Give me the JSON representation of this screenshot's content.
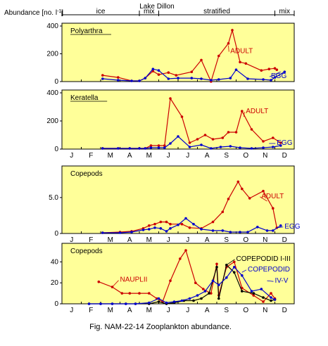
{
  "figure": {
    "title": "Lake Dillon",
    "ylabel": "Abundance [no. l",
    "ylabel_sup": "-1",
    "ylabel_close": "]",
    "caption": "Fig. NAM-22-14  Zooplankton abundance."
  },
  "seasons": [
    {
      "label": "ice",
      "from": 0,
      "to": 4
    },
    {
      "label": "mix",
      "from": 4,
      "to": 5
    },
    {
      "label": "stratified",
      "from": 5,
      "to": 11
    },
    {
      "label": "mix",
      "from": 11,
      "to": 12
    }
  ],
  "months": [
    "J",
    "F",
    "M",
    "A",
    "M",
    "J",
    "J",
    "A",
    "S",
    "O",
    "N",
    "D"
  ],
  "colors": {
    "panel_bg": "#ffff99",
    "adult": "#cc0000",
    "egg": "#0000cc",
    "nauplii": "#cc0000",
    "copepodid_1_3": "#000000",
    "copepodid_4_5": "#0000cc"
  },
  "chart_data": [
    {
      "type": "line",
      "title": "Polyarthra",
      "ylim": [
        0,
        400
      ],
      "yticks": [
        "0",
        "200",
        "400"
      ],
      "series": [
        {
          "name": "ADULT",
          "color": "#cc0000",
          "x": [
            2.1,
            2.9,
            3.6,
            4.0,
            4.3,
            4.7,
            5.0,
            5.5,
            5.9,
            6.7,
            7.2,
            7.7,
            8.1,
            8.6,
            8.8,
            9.2,
            9.5,
            10.3,
            10.7,
            11.0,
            11.1
          ],
          "y": [
            45,
            30,
            5,
            5,
            25,
            75,
            50,
            65,
            45,
            70,
            155,
            0,
            185,
            275,
            370,
            140,
            130,
            80,
            90,
            95,
            85
          ]
        },
        {
          "name": "EGG",
          "color": "#0000cc",
          "x": [
            2.1,
            2.9,
            3.6,
            4.0,
            4.3,
            4.7,
            5.0,
            5.5,
            6.0,
            6.7,
            7.2,
            7.7,
            8.1,
            8.7,
            9.0,
            9.6,
            10.4,
            10.8,
            11.0,
            11.5
          ],
          "y": [
            20,
            10,
            5,
            5,
            25,
            90,
            80,
            20,
            25,
            25,
            20,
            10,
            15,
            25,
            85,
            20,
            15,
            10,
            30,
            70
          ]
        }
      ],
      "labels": [
        {
          "bind": "adult",
          "text": "ADULT",
          "color": "#cc0000",
          "x": 8.6,
          "y": 260,
          "tx": 8.7,
          "ty": 220
        },
        {
          "bind": "egg",
          "text": "EGG",
          "color": "#0000cc",
          "x": 11.3,
          "y": 70,
          "tx": 10.8,
          "ty": 40
        }
      ]
    },
    {
      "type": "line",
      "title": "Keratella",
      "ylim": [
        0,
        400
      ],
      "yticks": [
        "0",
        "200",
        "400"
      ],
      "series": [
        {
          "name": "ADULT",
          "color": "#cc0000",
          "x": [
            2.1,
            2.9,
            3.5,
            4.0,
            4.3,
            4.6,
            5.0,
            5.3,
            5.6,
            6.2,
            6.6,
            7.0,
            7.4,
            7.8,
            8.3,
            8.6,
            9.0,
            9.3,
            9.8,
            10.4,
            10.9,
            11.3
          ],
          "y": [
            5,
            5,
            5,
            5,
            5,
            25,
            25,
            25,
            360,
            230,
            45,
            70,
            100,
            70,
            80,
            120,
            120,
            270,
            140,
            55,
            80,
            45
          ]
        },
        {
          "name": "EGG",
          "color": "#0000cc",
          "x": [
            2.1,
            2.9,
            3.5,
            4.0,
            4.3,
            4.6,
            5.0,
            5.3,
            5.6,
            6.0,
            6.6,
            7.2,
            7.7,
            8.2,
            8.7,
            9.2,
            9.8,
            10.4,
            10.9,
            11.3
          ],
          "y": [
            5,
            5,
            5,
            5,
            5,
            10,
            10,
            10,
            40,
            90,
            15,
            30,
            5,
            15,
            20,
            10,
            5,
            10,
            15,
            25
          ]
        }
      ],
      "labels": [
        {
          "bind": "adult",
          "text": "ADULT",
          "color": "#cc0000",
          "x": 9.4,
          "y": 230,
          "tx": 9.5,
          "ty": 270
        },
        {
          "bind": "egg",
          "text": "EGG",
          "color": "#0000cc",
          "x": 10.7,
          "y": 40,
          "tx": 11.1,
          "ty": 45
        }
      ]
    },
    {
      "type": "line",
      "title": "Copepods",
      "ylim": [
        0,
        9
      ],
      "yticks": [
        "0",
        "5.0"
      ],
      "series": [
        {
          "name": "ADULT",
          "color": "#cc0000",
          "x": [
            2.1,
            3.0,
            3.6,
            4.2,
            4.5,
            4.8,
            5.1,
            5.4,
            5.6,
            6.2,
            6.6,
            7.2,
            7.8,
            8.3,
            8.6,
            9.1,
            9.3,
            9.7,
            10.4,
            10.9,
            11.1
          ],
          "y": [
            0.1,
            0.2,
            0.3,
            0.7,
            1.1,
            1.3,
            1.6,
            1.6,
            1.3,
            1.3,
            0.8,
            0.7,
            1.6,
            3.0,
            4.8,
            7.2,
            6.2,
            4.9,
            5.9,
            3.5,
            0.8
          ]
        },
        {
          "name": "EGG",
          "color": "#0000cc",
          "x": [
            2.1,
            3.0,
            3.6,
            4.2,
            4.5,
            4.8,
            5.1,
            5.4,
            5.6,
            6.0,
            6.4,
            6.8,
            7.2,
            7.8,
            8.3,
            8.7,
            9.2,
            9.6,
            10.1,
            10.6,
            10.9,
            11.3
          ],
          "y": [
            0.1,
            0.1,
            0.2,
            0.5,
            0.6,
            0.8,
            0.7,
            0.3,
            0.7,
            1.2,
            2.1,
            1.3,
            0.6,
            0.4,
            0.4,
            0.2,
            0.2,
            0.2,
            0.9,
            0.4,
            0.4,
            1.1
          ]
        }
      ],
      "labels": [
        {
          "bind": "adult",
          "text": "ADULT",
          "color": "#cc0000",
          "x": 10.6,
          "y": 4.5,
          "tx": 10.3,
          "ty": 5.2
        },
        {
          "bind": "egg",
          "text": "EGG",
          "color": "#0000cc",
          "x": 11.1,
          "y": 0.8,
          "tx": 11.5,
          "ty": 1.0
        }
      ]
    },
    {
      "type": "line",
      "title": "Copepods",
      "ylim": [
        0,
        55
      ],
      "yticks": [
        "0",
        "20",
        "40"
      ],
      "series": [
        {
          "name": "NAUPLII",
          "color": "#cc0000",
          "x": [
            1.9,
            2.6,
            3.1,
            3.5,
            4.0,
            4.5,
            4.9,
            5.2,
            5.6,
            6.1,
            6.4,
            6.9,
            7.3,
            7.7,
            8.0,
            8.1,
            8.5,
            8.9,
            9.3,
            9.9,
            10.4,
            10.8,
            11.0
          ],
          "y": [
            21,
            16,
            10,
            10,
            10,
            10,
            5,
            2,
            22,
            43,
            51,
            20,
            14,
            10,
            38,
            8,
            35,
            40,
            15,
            8,
            2,
            10,
            5
          ]
        },
        {
          "name": "COPEPODID I-III",
          "color": "#000000",
          "x": [
            1.4,
            2.0,
            2.6,
            3.3,
            3.8,
            4.5,
            5.0,
            5.4,
            5.8,
            6.3,
            6.8,
            7.2,
            7.6,
            8.0,
            8.1,
            8.5,
            8.9,
            9.3,
            9.9,
            10.4,
            10.8,
            11.0
          ],
          "y": [
            0,
            0,
            0,
            0,
            0,
            0,
            2,
            0,
            1,
            3,
            3,
            5,
            10,
            35,
            5,
            37,
            30,
            12,
            10,
            6,
            3,
            4
          ]
        },
        {
          "name": "COPEPODID IV-V",
          "color": "#0000cc",
          "x": [
            1.4,
            2.0,
            2.6,
            3.3,
            3.8,
            4.5,
            5.0,
            5.4,
            5.8,
            6.2,
            6.6,
            7.0,
            7.4,
            7.8,
            8.1,
            8.5,
            8.9,
            9.3,
            9.8,
            10.3,
            10.8,
            11.0
          ],
          "y": [
            0,
            0,
            0,
            0,
            0,
            1,
            5,
            1,
            2,
            3,
            5,
            8,
            12,
            22,
            18,
            25,
            35,
            27,
            12,
            14,
            6,
            4
          ]
        }
      ],
      "labels": [
        {
          "bind": "nauplii",
          "text": "NAUPLII",
          "color": "#cc0000",
          "x": 2.6,
          "y": 16,
          "tx": 3.0,
          "ty": 23
        },
        {
          "bind": "cop13",
          "text": "COPEPODID I-III",
          "color": "#000000",
          "x": 8.5,
          "y": 37,
          "tx": 9.0,
          "ty": 43
        },
        {
          "bind": "cop45a",
          "text": "COPEPODID",
          "color": "#0000cc",
          "x": 9.3,
          "y": 30,
          "tx": 9.6,
          "ty": 33
        },
        {
          "bind": "cop45b",
          "text": "IV-V",
          "color": "#0000cc",
          "x": 10.6,
          "y": 22,
          "tx": 11.0,
          "ty": 22
        }
      ]
    }
  ]
}
